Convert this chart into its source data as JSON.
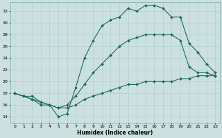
{
  "title": "",
  "xlabel": "Humidex (Indice chaleur)",
  "ylabel": "",
  "xlim": [
    -0.5,
    23.5
  ],
  "ylim": [
    13,
    33.5
  ],
  "yticks": [
    14,
    16,
    18,
    20,
    22,
    24,
    26,
    28,
    30,
    32
  ],
  "xticks": [
    0,
    1,
    2,
    3,
    4,
    5,
    6,
    7,
    8,
    9,
    10,
    11,
    12,
    13,
    14,
    15,
    16,
    17,
    18,
    19,
    20,
    21,
    22,
    23
  ],
  "bg_color": "#cce0e0",
  "line_color": "#1a6b5a",
  "grid_color": "#aacccc",
  "line1_x": [
    0,
    1,
    2,
    3,
    4,
    5,
    6,
    7,
    8,
    9,
    10,
    11,
    12,
    13,
    14,
    15,
    16,
    17,
    18,
    19,
    20,
    21,
    22,
    23
  ],
  "line1_y": [
    18.0,
    17.5,
    17.0,
    16.0,
    16.0,
    14.0,
    14.5,
    19.0,
    24.0,
    27.0,
    29.5,
    30.5,
    31.0,
    32.5,
    32.0,
    33.0,
    33.0,
    32.5,
    31.0,
    31.0,
    26.5,
    25.0,
    23.0,
    21.5
  ],
  "line2_x": [
    0,
    1,
    2,
    3,
    4,
    5,
    6,
    7,
    8,
    9,
    10,
    11,
    12,
    13,
    14,
    15,
    16,
    17,
    18,
    19,
    20,
    21,
    22,
    23
  ],
  "line2_y": [
    18.0,
    17.5,
    17.5,
    16.5,
    16.0,
    15.5,
    16.0,
    17.5,
    19.5,
    21.5,
    23.0,
    24.5,
    26.0,
    27.0,
    27.5,
    28.0,
    28.0,
    28.0,
    28.0,
    27.0,
    22.5,
    21.5,
    21.5,
    21.0
  ],
  "line3_x": [
    0,
    1,
    2,
    3,
    4,
    5,
    6,
    7,
    8,
    9,
    10,
    11,
    12,
    13,
    14,
    15,
    16,
    17,
    18,
    19,
    20,
    21,
    22,
    23
  ],
  "line3_y": [
    18.0,
    17.5,
    17.0,
    16.5,
    16.0,
    15.5,
    15.5,
    16.0,
    17.0,
    17.5,
    18.0,
    18.5,
    19.0,
    19.5,
    19.5,
    20.0,
    20.0,
    20.0,
    20.0,
    20.5,
    20.5,
    21.0,
    21.0,
    21.0
  ],
  "xlabel_fontsize": 5.5,
  "tick_fontsize": 4.5,
  "linewidth": 0.8,
  "markersize": 2.0
}
